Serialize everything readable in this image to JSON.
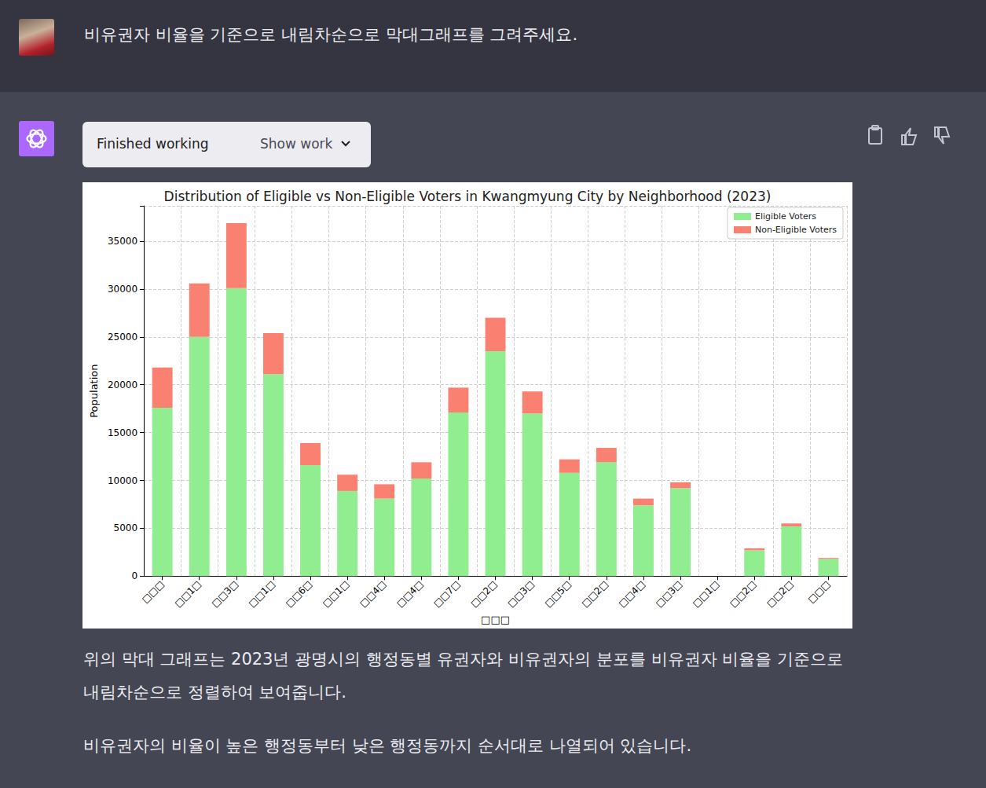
{
  "user_message": "비유권자 비율을 기준으로 내림차순으로 막대그래프를 그려주세요.",
  "assistant": {
    "status": "Finished working",
    "toggle": "Show work",
    "paragraphs": [
      "위의 막대 그래프는 2023년 광명시의 행정동별 유권자와 비유권자의 분포를 비유권자 비율을 기준으로 내림차순으로 정렬하여 보여줍니다.",
      "비유권자의 비율이 높은 행정동부터 낮은 행정동까지 순서대로 나열되어 있습니다."
    ]
  },
  "chart_data": {
    "type": "bar",
    "title": "Distribution of Eligible vs Non-Eligible Voters in Kwangmyung City by Neighborhood (2023)",
    "x_label": "□□□",
    "y_label": "Population",
    "categories": [
      "□□□",
      "□□1□",
      "□□3□",
      "□□1□",
      "□□6□",
      "□□1□",
      "□□4□",
      "□□4□",
      "□□7□",
      "□□2□",
      "□□3□",
      "□□5□",
      "□□2□",
      "□□4□",
      "□□3□",
      "□□1□",
      "□□2□",
      "□□2□",
      "□□□"
    ],
    "series": [
      {
        "name": "Eligible Voters",
        "color": "#90ee90",
        "values": [
          17600,
          25000,
          30100,
          21100,
          11600,
          8900,
          8100,
          10200,
          17100,
          23500,
          17000,
          10800,
          11900,
          7400,
          9200,
          0,
          2700,
          5200,
          1800
        ]
      },
      {
        "name": "Non-Eligible Voters",
        "color": "#fa8072",
        "values": [
          4200,
          5600,
          6800,
          4300,
          2300,
          1700,
          1500,
          1700,
          2600,
          3500,
          2300,
          1400,
          1500,
          700,
          600,
          0,
          200,
          300,
          100
        ]
      }
    ],
    "stacked": true,
    "ylim": [
      0,
      38700
    ],
    "yticks": [
      0,
      5000,
      10000,
      15000,
      20000,
      25000,
      30000,
      35000
    ],
    "grid": true,
    "legend": "upper right"
  }
}
